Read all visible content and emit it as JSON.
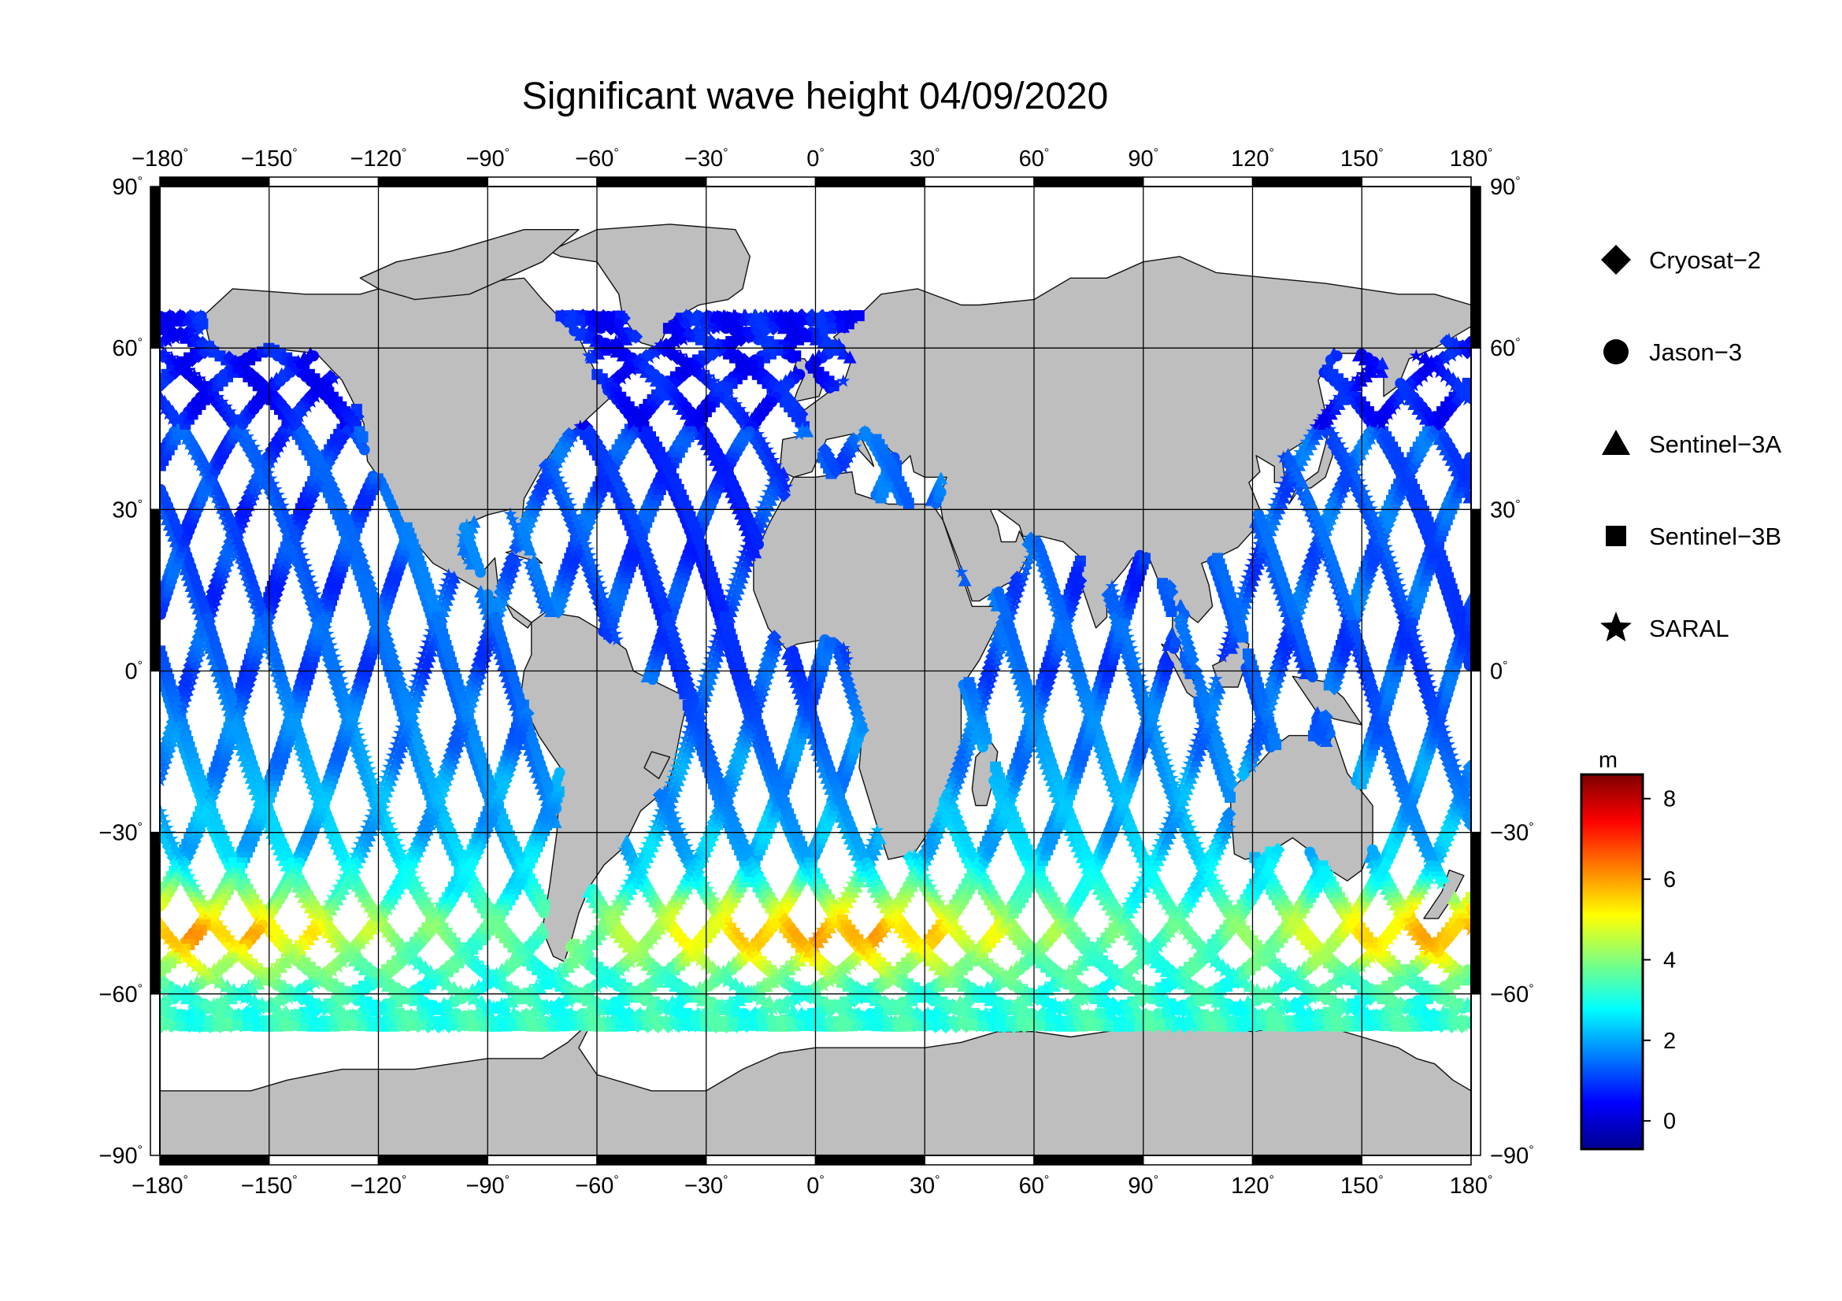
{
  "title": "Significant wave height 04/09/2020",
  "axes": {
    "lon_ticks": [
      -180,
      -150,
      -120,
      -90,
      -60,
      -30,
      0,
      30,
      60,
      90,
      120,
      150,
      180
    ],
    "lat_ticks": [
      90,
      60,
      30,
      0,
      -30,
      -60,
      -90
    ],
    "lon_range": [
      -180,
      180
    ],
    "lat_range": [
      -90,
      90
    ],
    "grid": true,
    "degree_mark": "°"
  },
  "legend": {
    "position": "right",
    "items": [
      {
        "label": "Cryosat−2",
        "icon": "diamond-icon"
      },
      {
        "label": "Jason−3",
        "icon": "circle-icon"
      },
      {
        "label": "Sentinel−3A",
        "icon": "triangle-icon"
      },
      {
        "label": "Sentinel−3B",
        "icon": "square-icon"
      },
      {
        "label": "SARAL",
        "icon": "star-icon"
      }
    ]
  },
  "colorbar": {
    "unit": "m",
    "min": -0.7,
    "max": 8.6,
    "ticks": [
      0,
      2,
      4,
      6,
      8
    ],
    "stops": [
      "#00008f",
      "#0000ff",
      "#007fff",
      "#00ffff",
      "#7fff7f",
      "#ffff00",
      "#ff7f00",
      "#ff0000",
      "#7f0000"
    ]
  },
  "colors": {
    "land": "#bebebe",
    "ocean": "#ffffff",
    "frame_dark": "#000000"
  }
}
